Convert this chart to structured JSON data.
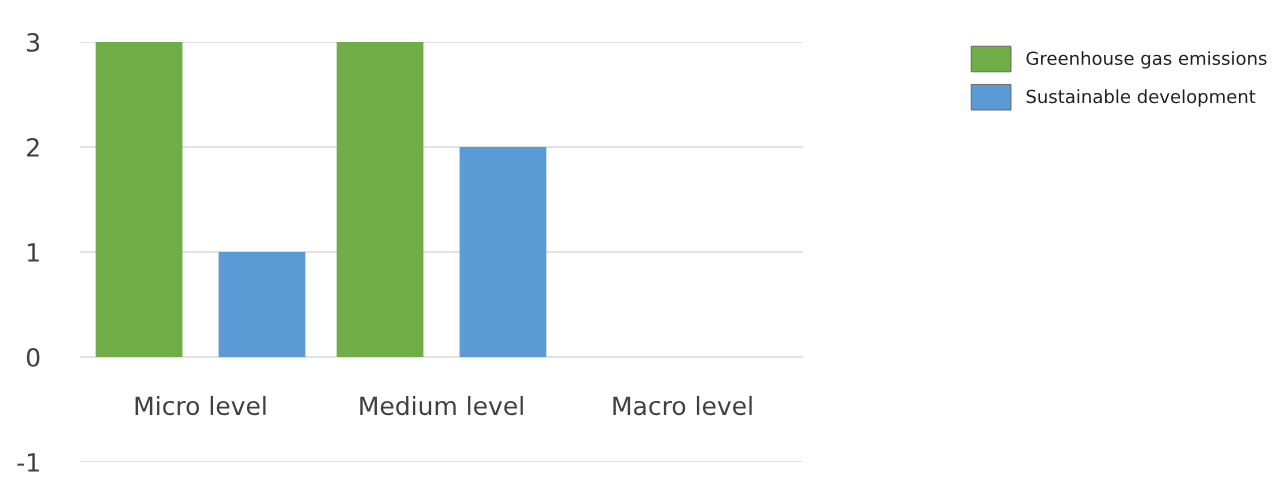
{
  "chart_data": {
    "type": "bar",
    "categories": [
      "Micro level",
      "Medium level",
      "Macro level"
    ],
    "series": [
      {
        "name": "Greenhouse gas emissions",
        "color": "#70ad47",
        "values": [
          3,
          3,
          0
        ]
      },
      {
        "name": "Sustainable development",
        "color": "#5b9bd5",
        "values": [
          1,
          2,
          0
        ]
      }
    ],
    "ylim": [
      -1,
      3
    ],
    "yticks": [
      -1,
      0,
      1,
      2,
      3
    ],
    "grid": "y",
    "legend": "top right"
  }
}
